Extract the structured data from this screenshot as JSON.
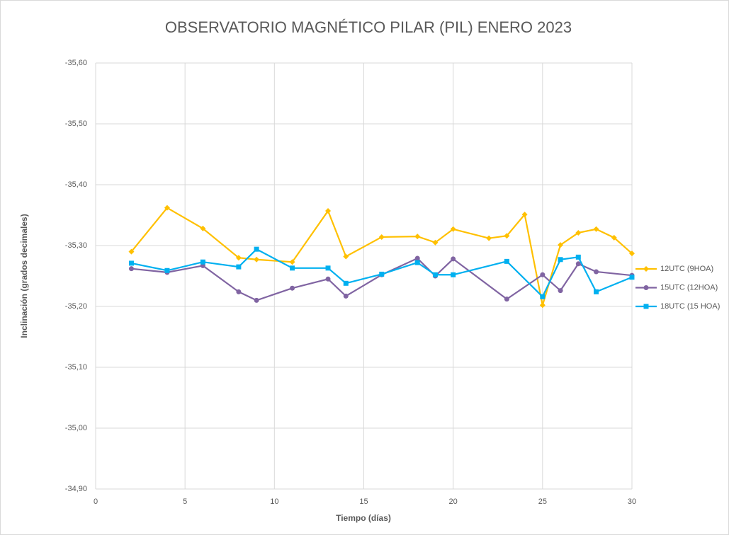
{
  "chart_data": {
    "type": "line",
    "title": "OBSERVATORIO MAGNÉTICO PILAR (PIL) ENERO 2023",
    "x_label": "Tiempo (días)",
    "y_label": "Inclinación (grados decimales)",
    "xlim": [
      0,
      30
    ],
    "xticks": [
      0,
      5,
      10,
      15,
      20,
      25,
      30
    ],
    "ylim": [
      -34.9,
      -35.6
    ],
    "yticks": [
      {
        "value": -35.6,
        "label": "-35,60"
      },
      {
        "value": -35.5,
        "label": "-35,50"
      },
      {
        "value": -35.4,
        "label": "-35,40"
      },
      {
        "value": -35.3,
        "label": "-35,30"
      },
      {
        "value": -35.2,
        "label": "-35,20"
      },
      {
        "value": -35.1,
        "label": "-35,10"
      },
      {
        "value": -35.0,
        "label": "-35,00"
      },
      {
        "value": -34.9,
        "label": "-34,90"
      }
    ],
    "grid": true,
    "legend": "right",
    "series": [
      {
        "name": "12UTC (9HOA)",
        "color": "#ffc000",
        "marker": "diamond",
        "x": [
          2,
          4,
          6,
          8,
          9,
          11,
          13,
          14,
          16,
          18,
          19,
          20,
          22,
          23,
          24,
          25,
          26,
          27,
          28,
          29,
          30
        ],
        "values": [
          -35.29,
          -35.362,
          -35.328,
          -35.28,
          -35.277,
          -35.273,
          -35.357,
          -35.282,
          -35.314,
          -35.315,
          -35.305,
          -35.327,
          -35.312,
          -35.316,
          -35.351,
          -35.202,
          -35.301,
          -35.321,
          -35.327,
          -35.313,
          -35.287
        ]
      },
      {
        "name": "15UTC (12HOA)",
        "color": "#8064a2",
        "marker": "circle",
        "x": [
          2,
          4,
          6,
          8,
          9,
          11,
          13,
          14,
          16,
          18,
          19,
          20,
          23,
          25,
          26,
          27,
          28,
          30
        ],
        "values": [
          -35.262,
          -35.256,
          -35.267,
          -35.224,
          -35.21,
          -35.23,
          -35.245,
          -35.217,
          -35.252,
          -35.279,
          -35.25,
          -35.278,
          -35.212,
          -35.252,
          -35.226,
          -35.27,
          -35.257,
          -35.251
        ]
      },
      {
        "name": "18UTC (15 HOA)",
        "color": "#00b0f0",
        "marker": "square",
        "x": [
          2,
          4,
          6,
          8,
          9,
          11,
          13,
          14,
          16,
          18,
          19,
          20,
          23,
          25,
          26,
          27,
          28,
          30
        ],
        "values": [
          -35.271,
          -35.259,
          -35.273,
          -35.265,
          -35.294,
          -35.263,
          -35.263,
          -35.238,
          -35.253,
          -35.272,
          -35.252,
          -35.252,
          -35.274,
          -35.216,
          -35.277,
          -35.281,
          -35.224,
          -35.248
        ]
      }
    ]
  }
}
